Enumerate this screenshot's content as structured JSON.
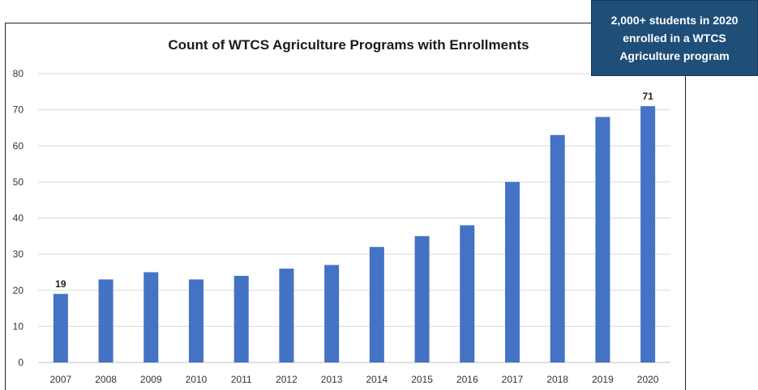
{
  "callout": {
    "lines": [
      "2,000+ students in 2020",
      "enrolled in a WTCS",
      "Agriculture program"
    ]
  },
  "colors": {
    "bar": "#4472c4",
    "grid": "#d9d9d9",
    "callout_bg": "#1f4e79"
  },
  "chart_data": {
    "type": "bar",
    "title": "Count of WTCS Agriculture Programs with Enrollments",
    "xlabel": "",
    "ylabel": "",
    "categories": [
      "2007",
      "2008",
      "2009",
      "2010",
      "2011",
      "2012",
      "2013",
      "2014",
      "2015",
      "2016",
      "2017",
      "2018",
      "2019",
      "2020"
    ],
    "values": [
      19,
      23,
      25,
      23,
      24,
      26,
      27,
      32,
      35,
      38,
      50,
      63,
      68,
      71
    ],
    "data_labels": {
      "2007": "19",
      "2020": "71"
    },
    "ylim": [
      0,
      80
    ],
    "yticks": [
      0,
      10,
      20,
      30,
      40,
      50,
      60,
      70,
      80
    ],
    "grid": true,
    "legend": "none"
  }
}
